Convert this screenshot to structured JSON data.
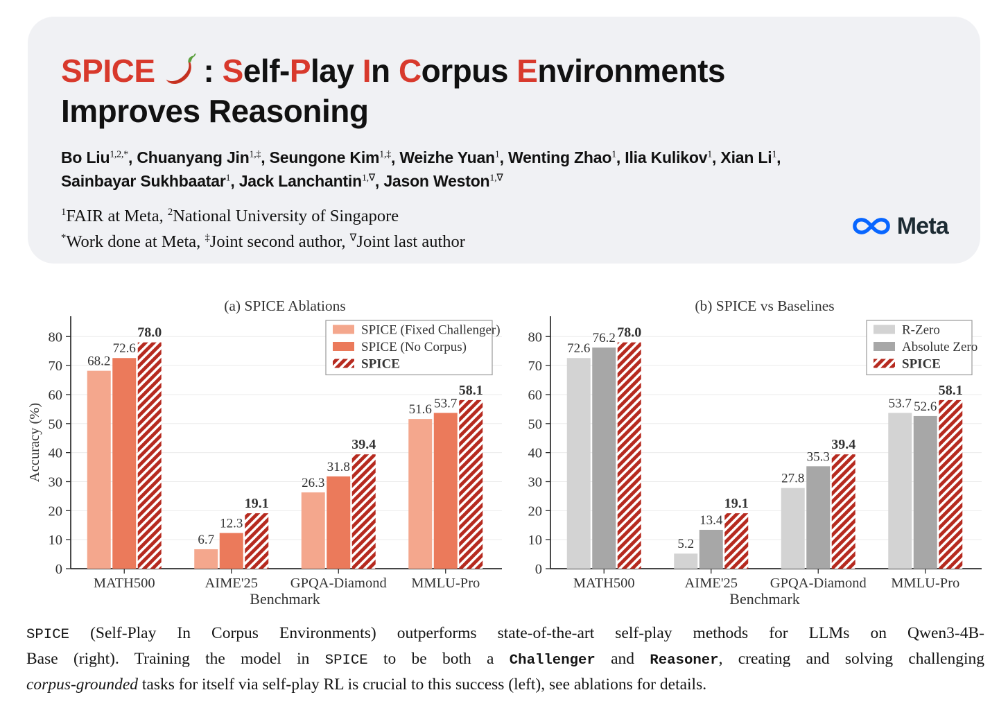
{
  "page": {
    "background": "#ffffff"
  },
  "header": {
    "background": "#F0F1F4",
    "title": {
      "spice": "SPICE",
      "spice_color": "#D8392C",
      "rest_segments": [
        {
          "t": ": ",
          "c": "#111111"
        },
        {
          "t": "S",
          "c": "#D8392C"
        },
        {
          "t": "elf-",
          "c": "#111111"
        },
        {
          "t": "P",
          "c": "#D8392C"
        },
        {
          "t": "lay ",
          "c": "#111111"
        },
        {
          "t": "I",
          "c": "#D8392C"
        },
        {
          "t": "n ",
          "c": "#111111"
        },
        {
          "t": "C",
          "c": "#D8392C"
        },
        {
          "t": "orpus ",
          "c": "#111111"
        },
        {
          "t": "E",
          "c": "#D8392C"
        },
        {
          "t": "nvironments",
          "c": "#111111"
        }
      ],
      "line2": "Improves Reasoning"
    },
    "authors": {
      "line1_segments": [
        {
          "t": "Bo Liu",
          "b": true
        },
        {
          "t": "1,2,*",
          "s": true
        },
        {
          "t": ",  ",
          "b": true
        },
        {
          "t": "Chuanyang Jin",
          "b": true
        },
        {
          "t": "1,‡",
          "s": true
        },
        {
          "t": ",  ",
          "b": true
        },
        {
          "t": "Seungone Kim",
          "b": true
        },
        {
          "t": "1,‡",
          "s": true
        },
        {
          "t": ",  ",
          "b": true
        },
        {
          "t": "Weizhe Yuan",
          "b": true
        },
        {
          "t": "1",
          "s": true
        },
        {
          "t": ",  ",
          "b": true
        },
        {
          "t": "Wenting Zhao",
          "b": true
        },
        {
          "t": "1",
          "s": true
        },
        {
          "t": ",  ",
          "b": true
        },
        {
          "t": "Ilia Kulikov",
          "b": true
        },
        {
          "t": "1",
          "s": true
        },
        {
          "t": ",  ",
          "b": true
        },
        {
          "t": "Xian Li",
          "b": true
        },
        {
          "t": "1",
          "s": true
        },
        {
          "t": ",",
          "b": true
        }
      ],
      "line2_segments": [
        {
          "t": "Sainbayar Sukhbaatar",
          "b": true
        },
        {
          "t": "1",
          "s": true
        },
        {
          "t": ",  ",
          "b": true
        },
        {
          "t": "Jack Lanchantin",
          "b": true
        },
        {
          "t": "1,∇",
          "s": true
        },
        {
          "t": ",  ",
          "b": true
        },
        {
          "t": "Jason Weston",
          "b": true
        },
        {
          "t": "1,∇",
          "s": true
        }
      ]
    },
    "affiliations": {
      "line1_segments": [
        {
          "t": "1",
          "s": true
        },
        {
          "t": "FAIR at Meta, "
        },
        {
          "t": "2",
          "s": true
        },
        {
          "t": "National University of Singapore"
        }
      ],
      "line2_segments": [
        {
          "t": "*",
          "s": true
        },
        {
          "t": "Work done at Meta, "
        },
        {
          "t": "‡",
          "s": true
        },
        {
          "t": "Joint second author, "
        },
        {
          "t": "∇",
          "s": true
        },
        {
          "t": "Joint last author"
        }
      ]
    },
    "meta_logo": {
      "text": "Meta",
      "infinity_color": "#0866FF",
      "text_color": "#1C2B33"
    }
  },
  "chart_data": [
    {
      "type": "bar",
      "title": "(a) SPICE Ablations",
      "categories": [
        "MATH500",
        "AIME'25",
        "GPQA-Diamond",
        "MMLU-Pro"
      ],
      "series": [
        {
          "name": "SPICE (Fixed Challenger)",
          "values": [
            68.2,
            6.7,
            26.3,
            51.6
          ],
          "color": "#F4A78D",
          "hatch": false,
          "bold": false
        },
        {
          "name": "SPICE (No Corpus)",
          "values": [
            72.6,
            12.3,
            31.8,
            53.7
          ],
          "color": "#EB7A5B",
          "hatch": false,
          "bold": false
        },
        {
          "name": "SPICE",
          "values": [
            78.0,
            19.1,
            39.4,
            58.1
          ],
          "color": "#B62A1F",
          "hatch": true,
          "bold": true
        }
      ],
      "xlabel": "Benchmark",
      "ylabel": "Accuracy (%)",
      "ylim": [
        0,
        87
      ],
      "yticks": [
        0,
        10,
        20,
        30,
        40,
        50,
        60,
        70,
        80
      ],
      "grid": true,
      "legend_position": "top-right",
      "hatch_color": "#ffffff"
    },
    {
      "type": "bar",
      "title": "(b) SPICE vs Baselines",
      "categories": [
        "MATH500",
        "AIME'25",
        "GPQA-Diamond",
        "MMLU-Pro"
      ],
      "series": [
        {
          "name": "R-Zero",
          "values": [
            72.6,
            5.2,
            27.8,
            53.7
          ],
          "color": "#D3D3D3",
          "hatch": false,
          "bold": false
        },
        {
          "name": "Absolute Zero",
          "values": [
            76.2,
            13.4,
            35.3,
            52.6
          ],
          "color": "#A7A7A7",
          "hatch": false,
          "bold": false
        },
        {
          "name": "SPICE",
          "values": [
            78.0,
            19.1,
            39.4,
            58.1
          ],
          "color": "#B62A1F",
          "hatch": true,
          "bold": true
        }
      ],
      "xlabel": "Benchmark",
      "ylabel": "",
      "ylim": [
        0,
        87
      ],
      "yticks": [
        0,
        10,
        20,
        30,
        40,
        50,
        60,
        70,
        80
      ],
      "grid": true,
      "legend_position": "top-right",
      "hatch_color": "#ffffff"
    }
  ],
  "caption": {
    "line1_segments": [
      {
        "t": "SPICE",
        "m": true
      },
      {
        "t": " (Self-Play In Corpus Environments) outperforms state-of-the-art self-play methods for LLMs on Qwen3-4B-"
      }
    ],
    "line2_segments": [
      {
        "t": "Base (right). Training the model in "
      },
      {
        "t": "SPICE",
        "m": true
      },
      {
        "t": " to be both a "
      },
      {
        "t": "Challenger",
        "m": true,
        "b": true
      },
      {
        "t": " and "
      },
      {
        "t": "Reasoner",
        "m": true,
        "b": true
      },
      {
        "t": ", creating and solving challenging"
      }
    ],
    "line3_segments": [
      {
        "t": "corpus-grounded",
        "i": true
      },
      {
        "t": " tasks for itself via self-play RL is crucial to this success (left), see ablations for details."
      }
    ]
  }
}
